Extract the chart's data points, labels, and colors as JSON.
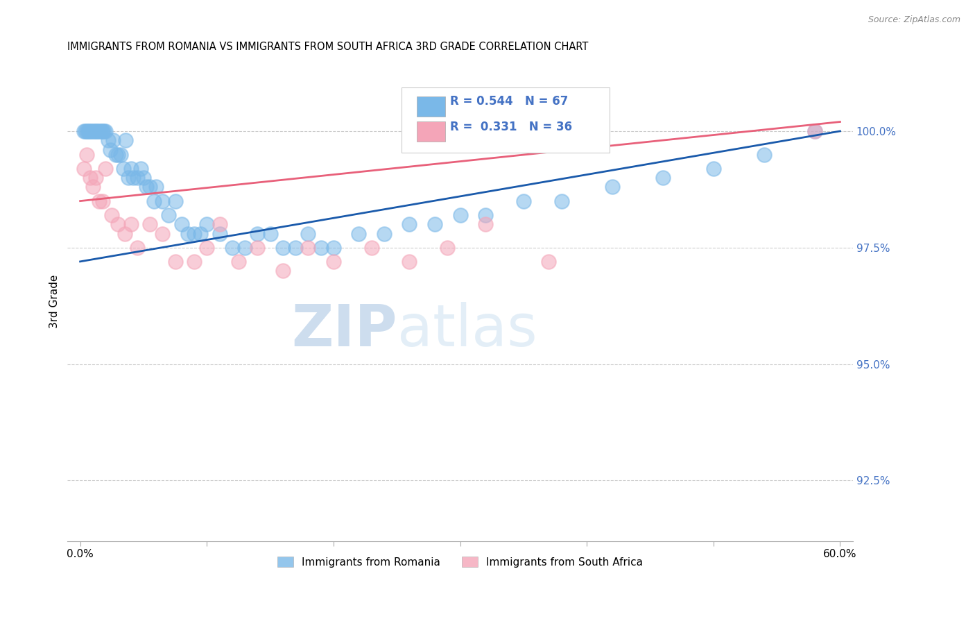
{
  "title": "IMMIGRANTS FROM ROMANIA VS IMMIGRANTS FROM SOUTH AFRICA 3RD GRADE CORRELATION CHART",
  "source": "Source: ZipAtlas.com",
  "ylabel": "3rd Grade",
  "y_ticks": [
    92.5,
    95.0,
    97.5,
    100.0
  ],
  "y_tick_labels": [
    "92.5%",
    "95.0%",
    "97.5%",
    "100.0%"
  ],
  "x_ticks": [
    0.0,
    10.0,
    20.0,
    30.0,
    40.0,
    50.0,
    60.0
  ],
  "xlim": [
    -1.0,
    61.0
  ],
  "ylim": [
    91.2,
    101.5
  ],
  "legend_label1": "Immigrants from Romania",
  "legend_label2": "Immigrants from South Africa",
  "color_blue": "#7ab8e8",
  "color_pink": "#f4a5b8",
  "color_blue_line": "#1a5aab",
  "color_pink_line": "#e8607a",
  "watermark_zip": "ZIP",
  "watermark_atlas": "atlas",
  "romania_x": [
    0.3,
    0.4,
    0.5,
    0.6,
    0.7,
    0.8,
    0.9,
    1.0,
    1.1,
    1.2,
    1.3,
    1.4,
    1.5,
    1.6,
    1.7,
    1.8,
    1.9,
    2.0,
    2.2,
    2.4,
    2.6,
    2.8,
    3.0,
    3.2,
    3.4,
    3.6,
    3.8,
    4.0,
    4.2,
    4.5,
    4.8,
    5.0,
    5.2,
    5.5,
    5.8,
    6.0,
    6.5,
    7.0,
    7.5,
    8.0,
    8.5,
    9.0,
    9.5,
    10.0,
    11.0,
    12.0,
    13.0,
    14.0,
    15.0,
    16.0,
    17.0,
    18.0,
    19.0,
    20.0,
    22.0,
    24.0,
    26.0,
    28.0,
    30.0,
    32.0,
    35.0,
    38.0,
    42.0,
    46.0,
    50.0,
    54.0,
    58.0
  ],
  "romania_y": [
    100.0,
    100.0,
    100.0,
    100.0,
    100.0,
    100.0,
    100.0,
    100.0,
    100.0,
    100.0,
    100.0,
    100.0,
    100.0,
    100.0,
    100.0,
    100.0,
    100.0,
    100.0,
    99.8,
    99.6,
    99.8,
    99.5,
    99.5,
    99.5,
    99.2,
    99.8,
    99.0,
    99.2,
    99.0,
    99.0,
    99.2,
    99.0,
    98.8,
    98.8,
    98.5,
    98.8,
    98.5,
    98.2,
    98.5,
    98.0,
    97.8,
    97.8,
    97.8,
    98.0,
    97.8,
    97.5,
    97.5,
    97.8,
    97.8,
    97.5,
    97.5,
    97.8,
    97.5,
    97.5,
    97.8,
    97.8,
    98.0,
    98.0,
    98.2,
    98.2,
    98.5,
    98.5,
    98.8,
    99.0,
    99.2,
    99.5,
    100.0
  ],
  "sa_x": [
    0.3,
    0.5,
    0.8,
    1.0,
    1.2,
    1.5,
    1.8,
    2.0,
    2.5,
    3.0,
    3.5,
    4.0,
    4.5,
    5.5,
    6.5,
    7.5,
    9.0,
    10.0,
    11.0,
    12.5,
    14.0,
    16.0,
    18.0,
    20.0,
    23.0,
    26.0,
    29.0,
    32.0,
    37.0,
    58.0
  ],
  "sa_y": [
    99.2,
    99.5,
    99.0,
    98.8,
    99.0,
    98.5,
    98.5,
    99.2,
    98.2,
    98.0,
    97.8,
    98.0,
    97.5,
    98.0,
    97.8,
    97.2,
    97.2,
    97.5,
    98.0,
    97.2,
    97.5,
    97.0,
    97.5,
    97.2,
    97.5,
    97.2,
    97.5,
    98.0,
    97.2,
    100.0
  ],
  "blue_trendline_x": [
    0,
    60
  ],
  "blue_trendline_y": [
    97.2,
    100.0
  ],
  "pink_trendline_x": [
    0,
    60
  ],
  "pink_trendline_y": [
    98.5,
    100.2
  ]
}
